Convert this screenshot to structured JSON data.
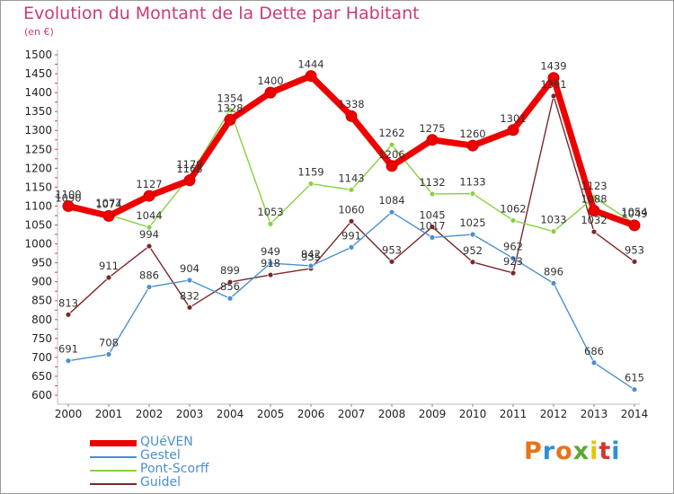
{
  "header": {
    "title": "Evolution du Montant de la Dette par Habitant",
    "subtitle": "(en €)"
  },
  "logo": {
    "text": "Proxiti",
    "colors": [
      "#e8731a",
      "#2e8fd6",
      "#e8731a",
      "#5aa832",
      "#e8c200",
      "#d8342c",
      "#2e8fd6"
    ]
  },
  "chart_data": {
    "type": "line",
    "x": [
      2000,
      2001,
      2002,
      2003,
      2004,
      2005,
      2006,
      2007,
      2008,
      2009,
      2010,
      2011,
      2012,
      2013,
      2014
    ],
    "ylim": [
      600,
      1500
    ],
    "yticks": [
      600,
      650,
      700,
      750,
      800,
      850,
      900,
      950,
      1000,
      1050,
      1100,
      1150,
      1200,
      1250,
      1300,
      1350,
      1400,
      1450,
      1500
    ],
    "grid": false,
    "legend_position": "bottom-left",
    "series": [
      {
        "name": "QUéVEN",
        "color": "#ee0000",
        "width": 7,
        "values": [
          1100,
          1074,
          1127,
          1168,
          1328,
          1400,
          1444,
          1338,
          1206,
          1275,
          1260,
          1301,
          1439,
          1088,
          1049
        ],
        "labels": [
          "1100",
          "1074",
          "1127",
          "1168",
          "1328",
          "1400",
          "1444",
          "1338",
          "1206",
          "1275",
          "1260",
          "1301",
          "1439",
          "1088",
          "1049"
        ]
      },
      {
        "name": "Gestel",
        "color": "#4a90d0",
        "width": 1.4,
        "values": [
          691,
          708,
          886,
          904,
          856,
          949,
          942,
          991,
          1084,
          1017,
          1025,
          962,
          896,
          686,
          615
        ],
        "labels": [
          "691",
          "708",
          "886",
          "904",
          "856",
          "949",
          "942",
          "991",
          "1084",
          "1017",
          "1025",
          "962",
          "896",
          "686",
          "615"
        ]
      },
      {
        "name": "Pont-Scorff",
        "color": "#88d040",
        "width": 1.4,
        "values": [
          1090,
          1077,
          1044,
          1179,
          1354,
          1053,
          1159,
          1143,
          1262,
          1132,
          1133,
          1062,
          1033,
          1123,
          1054
        ],
        "labels": [
          "1090",
          "1077",
          "1044",
          "1179",
          "1354",
          "1053",
          "1159",
          "1143",
          "1262",
          "1132",
          "1133",
          "1062",
          "1033",
          "1123",
          "1054"
        ]
      },
      {
        "name": "Guidel",
        "color": "#7a2828",
        "width": 1.4,
        "values": [
          813,
          911,
          994,
          832,
          899,
          918,
          935,
          1060,
          953,
          1045,
          952,
          923,
          1391,
          1032,
          953
        ],
        "labels": [
          "813",
          "911",
          "994",
          "832",
          "899",
          "918",
          "935",
          "1060",
          "953",
          "1045",
          "952",
          "923",
          "1391",
          "1032",
          "953"
        ]
      }
    ]
  }
}
